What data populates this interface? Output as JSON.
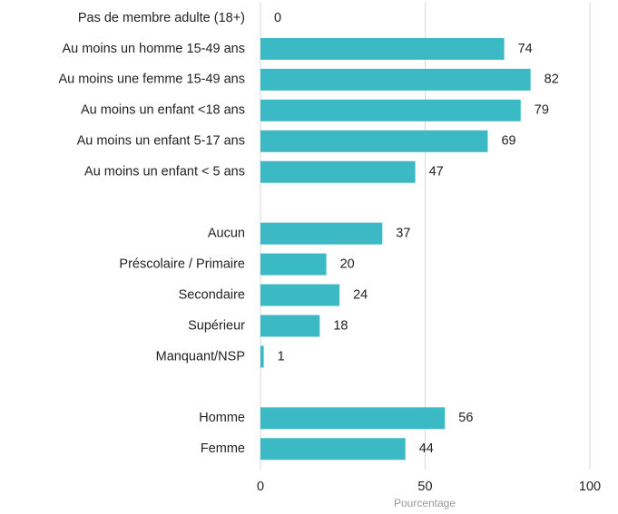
{
  "chart_data": {
    "type": "hbar",
    "categories": [
      "Pas de membre adulte (18+)",
      "Au moins un homme 15-49 ans",
      "Au moins une femme 15-49 ans",
      "Au moins un enfant  <18 ans",
      "Au moins un enfant 5-17 ans",
      "Au moins un enfant < 5 ans",
      null,
      "Aucun",
      "Préscolaire / Primaire ",
      "Secondaire",
      "Supérieur",
      "Manquant/NSP",
      null,
      "Homme",
      "Femme"
    ],
    "values": [
      0,
      74,
      82,
      79,
      69,
      47,
      null,
      37,
      20,
      24,
      18,
      1,
      null,
      56,
      44
    ],
    "color": "#3bbac6",
    "xlabel": "Pourcentage",
    "xlim": [
      0,
      100
    ],
    "xticks": [
      0,
      50,
      100
    ],
    "grid": true
  }
}
